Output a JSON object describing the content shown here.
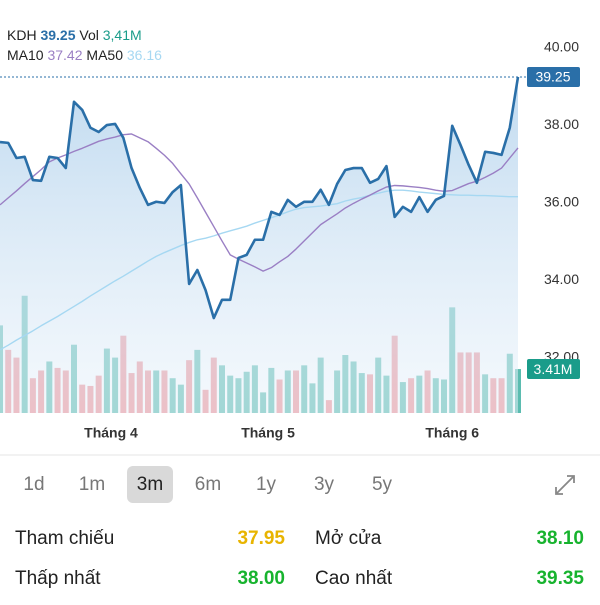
{
  "chart_data": {
    "type": "line",
    "series": [
      {
        "name": "KDH",
        "color": "#2a6fa8",
        "values": [
          37.57,
          37.55,
          37.16,
          37.19,
          36.59,
          36.57,
          37.19,
          37.16,
          36.9,
          38.61,
          38.4,
          37.94,
          37.83,
          38.01,
          38.04,
          37.68,
          36.9,
          36.39,
          35.95,
          36.03,
          36.0,
          36.28,
          36.46,
          33.91,
          34.27,
          33.75,
          33.03,
          33.5,
          33.5,
          34.58,
          34.66,
          35.05,
          35.05,
          35.77,
          35.69,
          36.08,
          35.9,
          36.03,
          36.03,
          36.34,
          35.95,
          36.49,
          36.85,
          36.9,
          36.9,
          36.52,
          36.62,
          36.95,
          35.64,
          35.9,
          35.77,
          36.15,
          35.77,
          36.08,
          36.18,
          37.99,
          37.5,
          36.98,
          36.52,
          37.32,
          37.29,
          37.24,
          37.94,
          39.25
        ]
      },
      {
        "name": "MA10",
        "color": "#9a7fc4",
        "values": [
          35.95,
          36.13,
          36.31,
          36.5,
          36.68,
          36.86,
          37.06,
          37.16,
          37.24,
          37.33,
          37.41,
          37.5,
          37.59,
          37.65,
          37.7,
          37.76,
          37.78,
          37.68,
          37.58,
          37.41,
          37.23,
          37.02,
          36.75,
          36.49,
          36.13,
          35.76,
          35.39,
          35.02,
          34.66,
          34.55,
          34.45,
          34.35,
          34.24,
          34.33,
          34.48,
          34.62,
          34.81,
          35.02,
          35.23,
          35.44,
          35.58,
          35.72,
          35.87,
          35.99,
          36.1,
          36.2,
          36.31,
          36.41,
          36.45,
          36.44,
          36.42,
          36.4,
          36.37,
          36.33,
          36.3,
          36.32,
          36.41,
          36.5,
          36.56,
          36.66,
          36.77,
          36.9,
          37.16,
          37.42
        ]
      },
      {
        "name": "MA50",
        "color": "#a6d8f2",
        "values": [
          32.21,
          32.33,
          32.46,
          32.58,
          32.7,
          32.83,
          32.95,
          33.07,
          33.2,
          33.33,
          33.46,
          33.6,
          33.73,
          33.86,
          33.99,
          34.11,
          34.24,
          34.37,
          34.5,
          34.62,
          34.72,
          34.81,
          34.9,
          34.98,
          35.05,
          35.09,
          35.15,
          35.22,
          35.28,
          35.34,
          35.4,
          35.48,
          35.55,
          35.62,
          35.69,
          35.77,
          35.84,
          35.88,
          35.9,
          35.92,
          35.95,
          35.98,
          36.05,
          36.1,
          36.14,
          36.2,
          36.25,
          36.3,
          36.33,
          36.33,
          36.31,
          36.28,
          36.26,
          36.24,
          36.22,
          36.21,
          36.2,
          36.2,
          36.19,
          36.19,
          36.18,
          36.17,
          36.16,
          36.16
        ]
      }
    ],
    "volume": {
      "name": "Vol",
      "header_label": "3,41M",
      "tag_label": "3.41M",
      "up_color": "#5bbcb0",
      "down_color": "#ee8f95",
      "tag_color": "#1a9c8a",
      "values": [
        6.8,
        4.9,
        4.3,
        9.1,
        2.7,
        3.3,
        4.0,
        3.5,
        3.3,
        5.3,
        2.2,
        2.1,
        2.9,
        5.0,
        4.3,
        6.0,
        3.1,
        4.0,
        3.3,
        3.3,
        3.3,
        2.7,
        2.2,
        4.1,
        4.9,
        1.8,
        4.3,
        3.7,
        2.9,
        2.7,
        3.2,
        3.7,
        1.6,
        3.5,
        2.6,
        3.3,
        3.3,
        3.7,
        2.3,
        4.3,
        1.0,
        3.3,
        4.5,
        4.0,
        3.1,
        3.0,
        4.3,
        2.9,
        6.0,
        2.4,
        2.7,
        2.9,
        3.3,
        2.7,
        2.6,
        8.2,
        4.7,
        4.7,
        4.7,
        3.0,
        2.7,
        2.7,
        4.6,
        3.41
      ],
      "ylim": [
        0,
        30.5
      ]
    },
    "ylim": [
      30.58,
      40.72
    ],
    "yticks": [
      {
        "value": 40,
        "label": "40.00"
      },
      {
        "value": 38,
        "label": "38.00"
      },
      {
        "value": 36,
        "label": "36.00"
      },
      {
        "value": 34,
        "label": "34.00"
      },
      {
        "value": 32,
        "label": "32.00"
      }
    ],
    "xticks": [
      {
        "value": 13.5,
        "label": "Tháng 4"
      },
      {
        "value": 32.6,
        "label": "Tháng 5"
      },
      {
        "value": 55,
        "label": "Tháng 6"
      }
    ],
    "price_tag_color": "#2a6fa8"
  },
  "ranges": {
    "items": [
      "1d",
      "1m",
      "3m",
      "6m",
      "1y",
      "3y",
      "5y"
    ],
    "selected": "3m"
  },
  "stats": [
    {
      "label": "Tham chiếu",
      "value": "37.95",
      "color": "#e8b400"
    },
    {
      "label": "Mở cửa",
      "value": "38.10",
      "color": "#17b32e"
    },
    {
      "label": "Thấp nhất",
      "value": "38.00",
      "color": "#17b32e"
    },
    {
      "label": "Cao nhất",
      "value": "39.35",
      "color": "#17b32e"
    }
  ]
}
